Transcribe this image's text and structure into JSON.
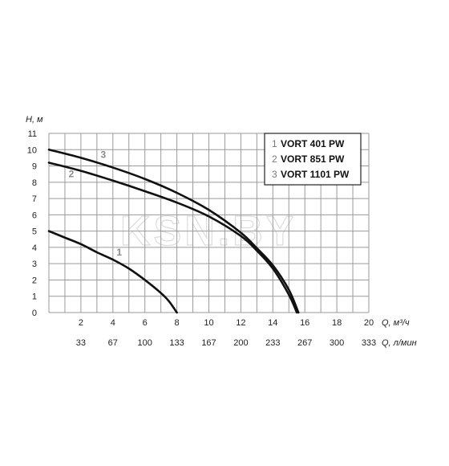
{
  "chart_data": {
    "type": "line",
    "title": "",
    "ylabel": "H, м",
    "xlabel": "Q, м³/ч",
    "xlabel2": "Q, л/мин",
    "xlim": [
      0,
      20
    ],
    "ylim": [
      0,
      11
    ],
    "yticks": [
      "0",
      "1",
      "2",
      "3",
      "4",
      "5",
      "6",
      "7",
      "8",
      "9",
      "10",
      "11"
    ],
    "xticks": [
      "2",
      "4",
      "6",
      "8",
      "10",
      "12",
      "14",
      "16",
      "18",
      "20"
    ],
    "xticks2": [
      "33",
      "67",
      "100",
      "133",
      "167",
      "200",
      "233",
      "267",
      "300",
      "333"
    ],
    "grid": true,
    "legend_position": "top-right",
    "watermark": "KSN.BY",
    "series": [
      {
        "tag": "1",
        "name": "VORT 401 PW",
        "x": [
          0,
          1,
          2,
          3,
          4,
          5,
          6,
          7,
          7.5,
          8
        ],
        "y": [
          5.0,
          4.6,
          4.2,
          3.7,
          3.25,
          2.7,
          2.0,
          1.2,
          0.7,
          0.0
        ]
      },
      {
        "tag": "2",
        "name": "VORT 851 PW",
        "x": [
          0,
          2,
          4,
          6,
          8,
          10,
          12,
          13,
          14,
          15,
          15.5
        ],
        "y": [
          9.2,
          8.7,
          8.1,
          7.45,
          6.75,
          5.9,
          4.7,
          3.8,
          2.7,
          1.1,
          0.0
        ]
      },
      {
        "tag": "3",
        "name": "VORT 1101 PW",
        "x": [
          0,
          2,
          4,
          6,
          8,
          10,
          12,
          13,
          14,
          15,
          15.6
        ],
        "y": [
          10.0,
          9.5,
          8.9,
          8.2,
          7.35,
          6.3,
          4.9,
          3.95,
          2.9,
          1.4,
          0.0
        ]
      }
    ]
  }
}
